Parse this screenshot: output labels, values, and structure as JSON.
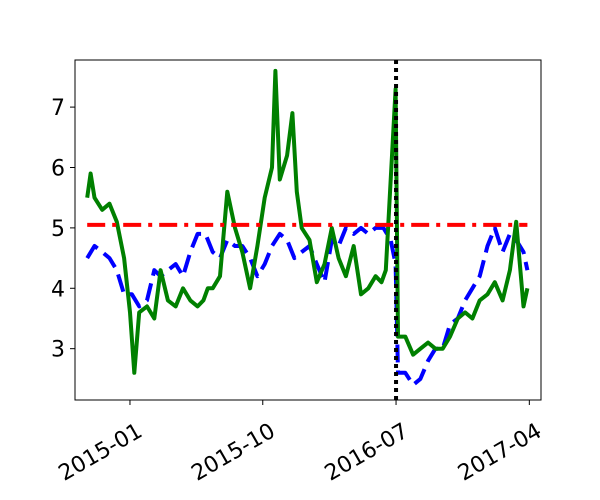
{
  "chart_data": {
    "type": "line",
    "title": "",
    "xlabel": "",
    "ylabel": "",
    "x_axis": {
      "type": "date",
      "range": [
        "2014-09-10",
        "2017-04-25"
      ],
      "ticks": [
        {
          "date": "2015-01-01",
          "label": "2015-01"
        },
        {
          "date": "2015-10-01",
          "label": "2015-10"
        },
        {
          "date": "2016-07-01",
          "label": "2016-07"
        },
        {
          "date": "2017-04-01",
          "label": "2017-04"
        }
      ]
    },
    "y_axis": {
      "range": [
        2.15,
        7.78
      ],
      "ticks": [
        {
          "value": 3,
          "label": "3"
        },
        {
          "value": 4,
          "label": "4"
        },
        {
          "value": 5,
          "label": "5"
        },
        {
          "value": 6,
          "label": "6"
        },
        {
          "value": 7,
          "label": "7"
        }
      ]
    },
    "grid": false,
    "series": [
      {
        "style": "dashed",
        "color": "#0000ff",
        "x": [
          "2014-10-05",
          "2014-10-20",
          "2014-11-05",
          "2014-11-20",
          "2014-12-05",
          "2014-12-20",
          "2015-01-05",
          "2015-01-20",
          "2015-02-05",
          "2015-02-20",
          "2015-03-05",
          "2015-03-20",
          "2015-04-05",
          "2015-04-20",
          "2015-05-05",
          "2015-05-20",
          "2015-06-05",
          "2015-06-20",
          "2015-07-05",
          "2015-07-20",
          "2015-08-05",
          "2015-08-20",
          "2015-09-05",
          "2015-09-20",
          "2015-10-05",
          "2015-10-20",
          "2015-11-05",
          "2015-11-20",
          "2015-12-05",
          "2015-12-20",
          "2016-01-05",
          "2016-01-20",
          "2016-02-05",
          "2016-02-20",
          "2016-03-05",
          "2016-03-20",
          "2016-04-05",
          "2016-04-20",
          "2016-05-05",
          "2016-05-20",
          "2016-06-05",
          "2016-06-20",
          "2016-06-30",
          "2016-07-05",
          "2016-07-20",
          "2016-08-05",
          "2016-08-20",
          "2016-09-05",
          "2016-09-20",
          "2016-10-05",
          "2016-10-20",
          "2016-11-05",
          "2016-11-20",
          "2016-12-05",
          "2016-12-20",
          "2017-01-05",
          "2017-01-20",
          "2017-02-05",
          "2017-02-20",
          "2017-03-05",
          "2017-03-20",
          "2017-03-28"
        ],
        "y": [
          4.5,
          4.7,
          4.6,
          4.5,
          4.3,
          3.9,
          3.9,
          3.7,
          3.8,
          4.3,
          4.2,
          4.3,
          4.4,
          4.2,
          4.6,
          4.9,
          4.9,
          4.6,
          4.5,
          4.8,
          4.7,
          4.7,
          4.5,
          4.2,
          4.4,
          4.7,
          4.9,
          4.8,
          4.5,
          4.6,
          4.7,
          4.4,
          4.1,
          4.8,
          4.7,
          5.0,
          4.9,
          5.0,
          4.9,
          5.0,
          5.0,
          4.8,
          4.4,
          2.6,
          2.6,
          2.4,
          2.5,
          2.8,
          3.0,
          3.0,
          3.4,
          3.5,
          3.8,
          4.0,
          4.2,
          4.7,
          5.0,
          4.6,
          4.9,
          4.8,
          4.6,
          4.3
        ]
      },
      {
        "style": "solid",
        "color": "#008000",
        "x": [
          "2014-10-05",
          "2014-10-12",
          "2014-10-20",
          "2014-11-05",
          "2014-11-20",
          "2014-12-05",
          "2014-12-20",
          "2015-01-01",
          "2015-01-10",
          "2015-01-20",
          "2015-02-05",
          "2015-02-20",
          "2015-03-05",
          "2015-03-20",
          "2015-04-05",
          "2015-04-20",
          "2015-05-05",
          "2015-05-20",
          "2015-06-01",
          "2015-06-10",
          "2015-06-20",
          "2015-07-05",
          "2015-07-20",
          "2015-08-05",
          "2015-08-20",
          "2015-09-05",
          "2015-09-20",
          "2015-10-05",
          "2015-10-20",
          "2015-10-27",
          "2015-11-05",
          "2015-11-20",
          "2015-12-01",
          "2015-12-10",
          "2015-12-20",
          "2016-01-05",
          "2016-01-20",
          "2016-02-05",
          "2016-02-20",
          "2016-03-05",
          "2016-03-20",
          "2016-04-05",
          "2016-04-20",
          "2016-05-05",
          "2016-05-20",
          "2016-06-01",
          "2016-06-10",
          "2016-06-20",
          "2016-06-30",
          "2016-07-05",
          "2016-07-20",
          "2016-08-05",
          "2016-08-20",
          "2016-09-05",
          "2016-09-20",
          "2016-10-05",
          "2016-10-20",
          "2016-11-05",
          "2016-11-20",
          "2016-12-05",
          "2016-12-20",
          "2017-01-05",
          "2017-01-20",
          "2017-02-05",
          "2017-02-20",
          "2017-03-05",
          "2017-03-20",
          "2017-03-28"
        ],
        "y": [
          5.5,
          5.9,
          5.5,
          5.3,
          5.4,
          5.1,
          4.5,
          3.6,
          2.6,
          3.6,
          3.7,
          3.5,
          4.3,
          3.8,
          3.7,
          4.0,
          3.8,
          3.7,
          3.8,
          4.0,
          4.0,
          4.2,
          5.6,
          5.0,
          4.6,
          4.0,
          4.7,
          5.5,
          6.0,
          7.6,
          5.8,
          6.2,
          6.9,
          5.6,
          5.0,
          4.8,
          4.1,
          4.4,
          5.0,
          4.5,
          4.2,
          4.7,
          3.9,
          4.0,
          4.2,
          4.1,
          4.3,
          5.8,
          7.3,
          3.2,
          3.2,
          2.9,
          3.0,
          3.1,
          3.0,
          3.0,
          3.2,
          3.5,
          3.6,
          3.5,
          3.8,
          3.9,
          4.1,
          3.8,
          4.3,
          5.1,
          3.7,
          4.0
        ]
      },
      {
        "style": "dashdot",
        "color": "#ff0000",
        "x": [
          "2014-10-05",
          "2017-03-28"
        ],
        "y": [
          5.05,
          5.05
        ]
      }
    ],
    "annotations": [
      {
        "type": "vertical-line",
        "x": "2016-07-01",
        "style": "dotted",
        "color": "#000000"
      }
    ]
  }
}
